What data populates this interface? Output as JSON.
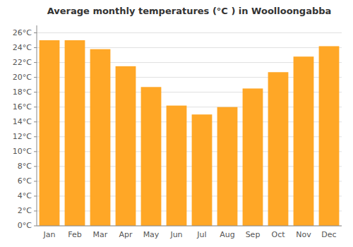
{
  "chart_data": {
    "type": "bar",
    "title": "Average monthly temperatures (°C ) in Woolloongabba",
    "categories": [
      "Jan",
      "Feb",
      "Mar",
      "Apr",
      "May",
      "Jun",
      "Jul",
      "Aug",
      "Sep",
      "Oct",
      "Nov",
      "Dec"
    ],
    "values": [
      25.0,
      25.0,
      23.8,
      21.5,
      18.7,
      16.2,
      15.0,
      16.0,
      18.5,
      20.7,
      22.8,
      24.2
    ],
    "color": "#FFA726",
    "ylim": [
      0,
      27
    ],
    "yticks": [
      {
        "value": 0,
        "label": "0°C"
      },
      {
        "value": 2,
        "label": "2°C"
      },
      {
        "value": 4,
        "label": "4°C"
      },
      {
        "value": 6,
        "label": "6°C"
      },
      {
        "value": 8,
        "label": "8°C"
      },
      {
        "value": 10,
        "label": "10°C"
      },
      {
        "value": 12,
        "label": "12°C"
      },
      {
        "value": 14,
        "label": "14°C"
      },
      {
        "value": 16,
        "label": "16°C"
      },
      {
        "value": 18,
        "label": "18°C"
      },
      {
        "value": 20,
        "label": "20°C"
      },
      {
        "value": 22,
        "label": "22°C"
      },
      {
        "value": 24,
        "label": "24°C"
      },
      {
        "value": 26,
        "label": "26°C"
      }
    ],
    "grid": true
  }
}
